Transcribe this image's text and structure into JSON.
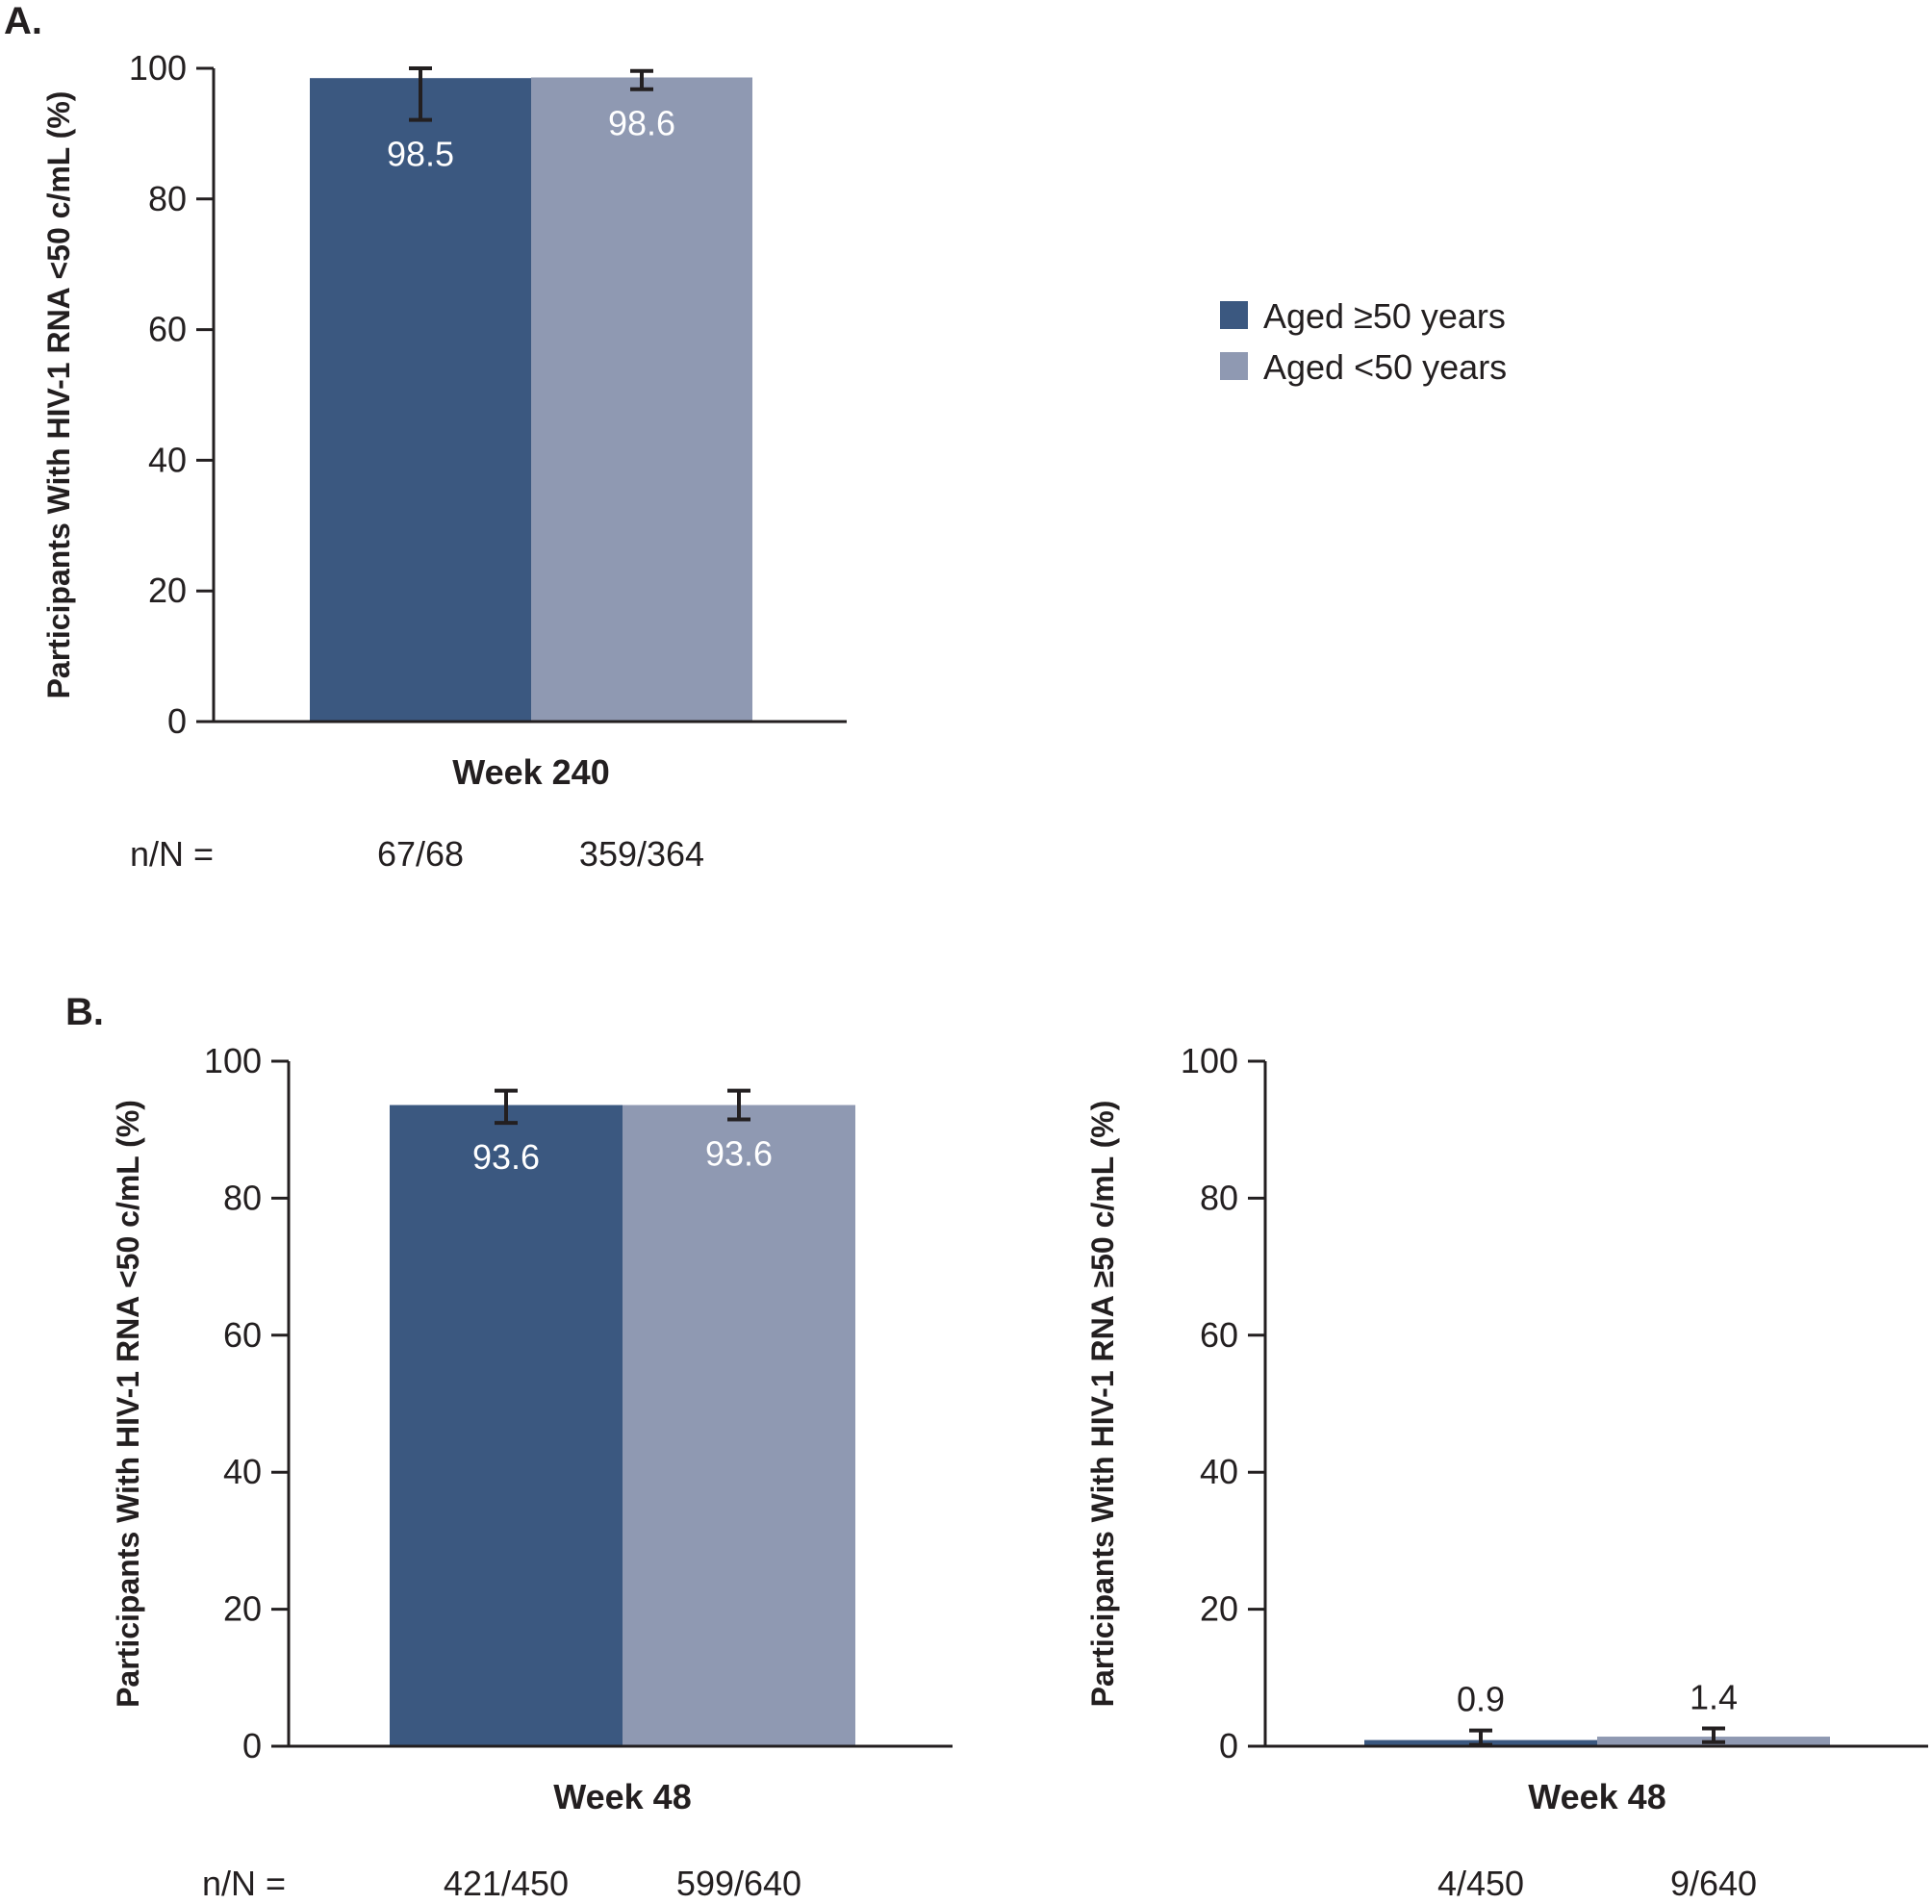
{
  "legend": {
    "items": [
      {
        "label": "Aged ≥50 years",
        "color": "#3b5880"
      },
      {
        "label": "Aged <50 years",
        "color": "#8f99b2"
      }
    ]
  },
  "panels": {
    "A": {
      "label": "A.",
      "nn_prefix": "n/N ="
    },
    "B": {
      "label": "B.",
      "nn_prefix": "n/N ="
    }
  },
  "chart_data": [
    {
      "panel": "A",
      "type": "bar",
      "ylabel": "Participants With HIV-1 RNA <50 c/mL (%)",
      "ylim": [
        0,
        100
      ],
      "yticks": [
        0,
        20,
        40,
        60,
        80,
        100
      ],
      "category": "Week 240",
      "series": [
        {
          "name": "Aged ≥50 years",
          "value": 98.5,
          "value_label": "98.5",
          "ci": [
            92.1,
            100
          ],
          "nn": "67/68"
        },
        {
          "name": "Aged <50 years",
          "value": 98.6,
          "value_label": "98.6",
          "ci": [
            96.8,
            99.6
          ],
          "nn": "359/364"
        }
      ]
    },
    {
      "panel": "B-left",
      "type": "bar",
      "ylabel": "Participants With HIV-1 RNA <50 c/mL (%)",
      "ylim": [
        0,
        100
      ],
      "yticks": [
        0,
        20,
        40,
        60,
        80,
        100
      ],
      "category": "Week 48",
      "series": [
        {
          "name": "Aged ≥50 years",
          "value": 93.6,
          "value_label": "93.6",
          "ci": [
            91.0,
            95.7
          ],
          "nn": "421/450"
        },
        {
          "name": "Aged <50 years",
          "value": 93.6,
          "value_label": "93.6",
          "ci": [
            91.5,
            95.7
          ],
          "nn": "599/640"
        }
      ]
    },
    {
      "panel": "B-right",
      "type": "bar",
      "ylabel": "Participants With HIV-1 RNA ≥50 c/mL (%)",
      "ylim": [
        0,
        100
      ],
      "yticks": [
        0,
        20,
        40,
        60,
        80,
        100
      ],
      "category": "Week 48",
      "series": [
        {
          "name": "Aged ≥50 years",
          "value": 0.9,
          "value_label": "0.9",
          "ci": [
            0.2,
            2.3
          ],
          "nn": "4/450"
        },
        {
          "name": "Aged <50 years",
          "value": 1.4,
          "value_label": "1.4",
          "ci": [
            0.6,
            2.6
          ],
          "nn": "9/640"
        }
      ]
    }
  ]
}
